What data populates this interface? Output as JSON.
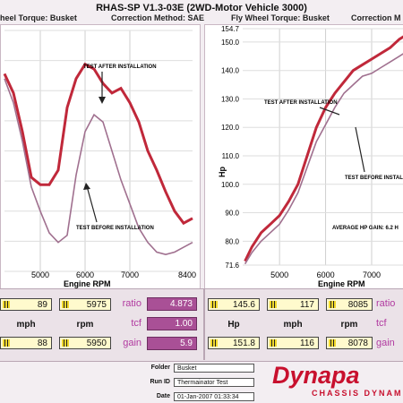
{
  "header": {
    "title": "RHAS-SP V1.3-03E (2WD-Motor Vehicle 3000)",
    "left_torque": "heel Torque: Busket",
    "left_correction": "Correction Method: SAE",
    "right_torque": "Fly Wheel Torque: Busket",
    "right_correction": "Correction M"
  },
  "chart_data": [
    {
      "type": "line",
      "xlabel": "Engine RPM",
      "x_ticks": [
        "5000",
        "6000",
        "7000",
        "8400"
      ],
      "xlim": [
        4200,
        8400
      ],
      "ylabel": "",
      "annotations": [
        "TEST AFTER INSTALLATION",
        "TEST BEFORE INSTALLATION"
      ],
      "series": [
        {
          "name": "TEST AFTER INSTALLATION",
          "color": "#c0283a",
          "x": [
            4200,
            4400,
            4600,
            4800,
            5000,
            5200,
            5400,
            5600,
            5800,
            6000,
            6200,
            6400,
            6600,
            6800,
            7000,
            7200,
            7400,
            7600,
            7800,
            8000,
            8200,
            8400
          ],
          "y": [
            0.18,
            0.26,
            0.42,
            0.61,
            0.64,
            0.64,
            0.58,
            0.32,
            0.2,
            0.14,
            0.16,
            0.22,
            0.26,
            0.24,
            0.3,
            0.38,
            0.5,
            0.58,
            0.67,
            0.75,
            0.8,
            0.78
          ]
        },
        {
          "name": "TEST BEFORE INSTALLATION",
          "color": "#a0708f",
          "x": [
            4200,
            4400,
            4600,
            4800,
            5000,
            5200,
            5400,
            5600,
            5800,
            6000,
            6200,
            6400,
            6600,
            6800,
            7000,
            7200,
            7400,
            7600,
            7800,
            8000,
            8200,
            8400
          ],
          "y": [
            0.2,
            0.3,
            0.46,
            0.65,
            0.75,
            0.84,
            0.88,
            0.85,
            0.6,
            0.42,
            0.35,
            0.38,
            0.5,
            0.62,
            0.72,
            0.82,
            0.88,
            0.92,
            0.93,
            0.92,
            0.9,
            0.88
          ]
        }
      ]
    },
    {
      "type": "line",
      "xlabel": "Engine RPM",
      "ylabel": "Hp",
      "x_ticks": [
        "5000",
        "6000",
        "7000"
      ],
      "xlim": [
        4200,
        7700
      ],
      "y_ticks": [
        "154.7",
        "150.0",
        "140.0",
        "130.0",
        "120.0",
        "110.0",
        "100.0",
        "90.0",
        "80.0",
        "71.6"
      ],
      "ylim": [
        71.6,
        154.7
      ],
      "annotations": [
        "TEST AFTER INSTALLATION",
        "TEST BEFORE INSTALLATION",
        "AVERAGE HP GAIN: 6.2 H"
      ],
      "series": [
        {
          "name": "TEST AFTER INSTALLATION",
          "color": "#c0283a",
          "x": [
            4250,
            4400,
            4600,
            4800,
            5000,
            5200,
            5400,
            5600,
            5800,
            6000,
            6200,
            6400,
            6600,
            6800,
            7000,
            7200,
            7400,
            7600,
            7700
          ],
          "y": [
            73,
            78,
            83,
            86,
            89,
            94,
            100,
            110,
            120,
            127,
            132,
            136,
            140,
            142,
            144,
            146,
            148,
            151,
            152
          ]
        },
        {
          "name": "TEST BEFORE INSTALLATION",
          "color": "#a0708f",
          "x": [
            4250,
            4400,
            4600,
            4800,
            5000,
            5200,
            5400,
            5600,
            5800,
            6000,
            6200,
            6400,
            6600,
            6800,
            7000,
            7200,
            7400,
            7600,
            7700
          ],
          "y": [
            72,
            76,
            80,
            83,
            86,
            91,
            97,
            106,
            115,
            121,
            127,
            132,
            135,
            138,
            139,
            141,
            143,
            145,
            146
          ]
        }
      ]
    }
  ],
  "readouts": {
    "row1": [
      "89",
      "5975"
    ],
    "row1_labels": [
      "mph",
      "rpm"
    ],
    "row2": [
      "88",
      "5950"
    ],
    "ratio_label": "ratio",
    "ratio_value": "4.873",
    "tcf_label": "tcf",
    "tcf_value": "1.00",
    "gain_label": "gain",
    "gain_value": "5.9",
    "r_row1": [
      "145.6",
      "117",
      "8085"
    ],
    "r_labels": [
      "Hp",
      "mph",
      "rpm"
    ],
    "r_row2": [
      "151.8",
      "116",
      "8078"
    ],
    "r_ratio": "ratio",
    "r_tcf": "tcf",
    "r_gain": "gain"
  },
  "info": {
    "folder_label": "Folder",
    "folder_value": "Busket",
    "runid_label": "Run ID",
    "runid_value": "Thermainator Test",
    "date_label": "Date",
    "date_value": "01-Jan-2007 01:33:34"
  },
  "brand": {
    "logo": "Dynapa",
    "subtitle": "CHASSIS DYNAM",
    "color": "#c8102e"
  }
}
